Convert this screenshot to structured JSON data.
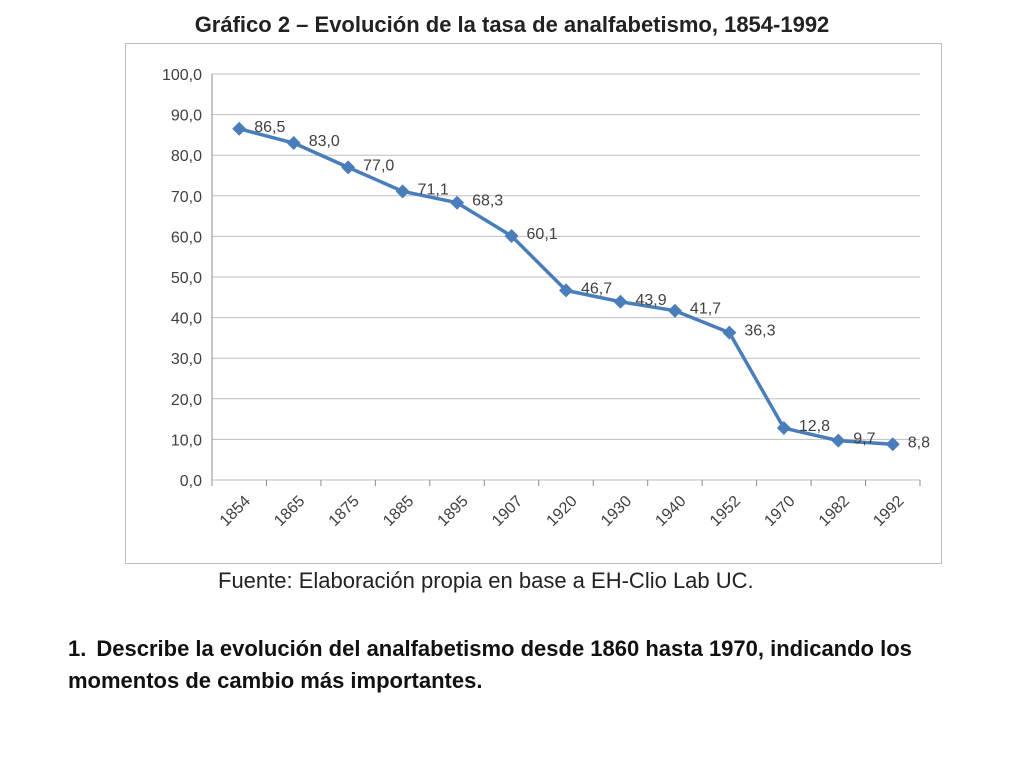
{
  "page": {
    "title": "Gráfico 2 – Evolución de la tasa de analfabetismo, 1854-1992",
    "source_prefix": "Fuente: Elaboración propia en base a ",
    "source_brand": "EH-Clio Lab UC.",
    "question_number": "1.",
    "question_text": "Describe la evolución del analfabetismo desde 1860 hasta 1970, indicando los momentos de cambio más importantes."
  },
  "chart_data": {
    "type": "line",
    "title": "Gráfico 2 – Evolución de la tasa de analfabetismo, 1854-1992",
    "xlabel": "",
    "ylabel": "",
    "categories": [
      "1854",
      "1865",
      "1875",
      "1885",
      "1895",
      "1907",
      "1920",
      "1930",
      "1940",
      "1952",
      "1970",
      "1982",
      "1992"
    ],
    "series": [
      {
        "values": [
          86.5,
          83.0,
          77.0,
          71.1,
          68.3,
          60.1,
          46.7,
          43.9,
          41.7,
          36.3,
          12.8,
          9.7,
          8.8
        ],
        "labels": [
          "86,5",
          "83,0",
          "77,0",
          "71,1",
          "68,3",
          "60,1",
          "46,7",
          "43,9",
          "41,7",
          "36,3",
          "12,8",
          "9,7",
          "8,8"
        ],
        "color": "#4a7ebb"
      }
    ],
    "ylim": [
      0,
      100
    ],
    "yticks": [
      "0,0",
      "10,0",
      "20,0",
      "30,0",
      "40,0",
      "50,0",
      "60,0",
      "70,0",
      "80,0",
      "90,0",
      "100,0"
    ],
    "grid": true,
    "legend": "none",
    "markers": "diamond"
  }
}
